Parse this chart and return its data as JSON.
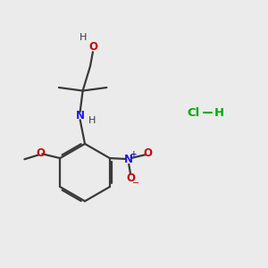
{
  "bg_color": "#ebebeb",
  "bond_color": "#3a3a3a",
  "oxygen_color": "#cc0000",
  "nitrogen_color": "#1a1aee",
  "hcl_color": "#00aa00",
  "figsize": [
    3.0,
    3.0
  ],
  "dpi": 100,
  "xlim": [
    0,
    10
  ],
  "ylim": [
    0,
    10
  ]
}
